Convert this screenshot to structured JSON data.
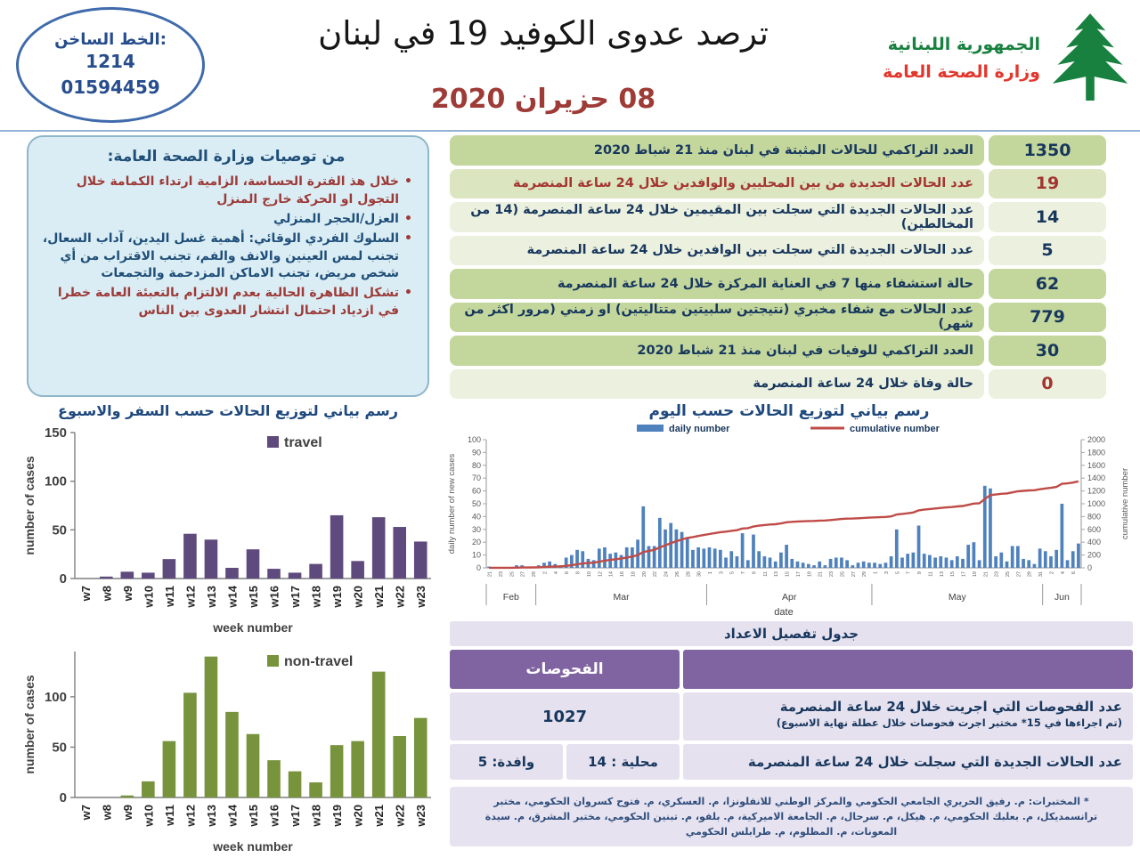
{
  "page": {
    "hotline": {
      "title": "الخط الساخن:",
      "line1": "1214",
      "line2": "01594459"
    },
    "title": "ترصد عدوى الكوفيد 19 في لبنان",
    "date": "08 حزيران 2020",
    "ministry": {
      "name_green": "الجمهورية اللبنانية",
      "name_red": "وزارة الصحة العامة"
    }
  },
  "recommendations": {
    "title": "من توصيات وزارة الصحة العامة:",
    "items": [
      {
        "color": "red",
        "text": "خلال هذ الفترة الحساسة، الزامية ارتداء الكمامة خلال التجول او الحركة خارج المنزل"
      },
      {
        "color": "blue",
        "text": "العزل/الحجر المنزلي"
      },
      {
        "color": "blue",
        "text": "السلوك الفردي الوقائي: أهمية غسل اليدين، آداب السعال، تجنب لمس العينين والانف والفم، تجنب الاقتراب من أي شخص مريض، تجنب الاماكن المزدحمة والتجمعات"
      },
      {
        "color": "red",
        "text": "تشكل الظاهرة الحالية بعدم الالتزام بالتعبئة العامة خطرا في ازدياد احتمال انتشار العدوى بين الناس"
      }
    ]
  },
  "stats_table": {
    "rows": [
      {
        "label": "العدد التراكمي للحالات المثبتة في لبنان منذ 21 شباط 2020",
        "value": "1350",
        "shade": "dark",
        "label_color": "navy",
        "value_color": "navy"
      },
      {
        "label": "عدد الحالات الجديدة من بين المحليين والوافدين خلال 24 ساعة المنصرمة",
        "value": "19",
        "shade": "mid",
        "label_color": "red",
        "value_color": "red"
      },
      {
        "label": "عدد الحالات الجديدة التي سجلت بين المقيمين خلال 24 ساعة المنصرمة (14 من المخالطين)",
        "value": "14",
        "shade": "pale",
        "label_color": "navy",
        "value_color": "navy"
      },
      {
        "label": "عدد الحالات الجديدة التي سجلت بين الوافدين خلال 24 ساعة المنصرمة",
        "value": "5",
        "shade": "pale",
        "label_color": "navy",
        "value_color": "navy"
      },
      {
        "label": "حالة استشفاء منها 7 في العناية المركزة خلال 24 ساعة المنصرمة",
        "value": "62",
        "shade": "dark",
        "label_color": "navy",
        "value_color": "navy"
      },
      {
        "label": "عدد الحالات مع شفاء مخبري (نتيجتين سلبيتين متتاليتين) او زمني (مرور اكثر من شهر)",
        "value": "779",
        "shade": "dark",
        "label_color": "navy",
        "value_color": "navy"
      },
      {
        "label": "العدد التراكمي للوفيات في لبنان منذ 21 شباط 2020",
        "value": "30",
        "shade": "dark",
        "label_color": "navy",
        "value_color": "navy"
      },
      {
        "label": "حالة وفاة خلال 24 ساعة المنصرمة",
        "value": "0",
        "shade": "pale",
        "label_color": "navy",
        "value_color": "red"
      }
    ]
  },
  "charts_section": {
    "weekly_title": "رسم بياني لتوزيع الحالات حسب السفر والاسبوع",
    "daily_title": "رسم بياني لتوزيع الحالات حسب اليوم"
  },
  "detail_table": {
    "title": "جدول تفصيل الاعداد",
    "header": "الفحوصات",
    "row1_label": "عدد الفحوصات التي اجريت خلال 24 ساعة المنصرمة",
    "row1_sub": "(تم اجراءها في 15* مختبر اجرت فحوصات خلال عطلة نهاية الاسبوع)",
    "row1_value": "1027",
    "row2_label": "عدد الحالات الجديدة التي سجلت خلال 24 ساعة المنصرمة",
    "row2_local": "محلية : 14",
    "row2_arrival": "وافدة: 5"
  },
  "footnote": "* المختبرات: م. رفيق الحريري الجامعي الحكومي والمركز الوطني للانفلونزا، م. العسكري، م. فتوح كسروان الحكومي، مختبر ترانسمديكل، م. بعلبك الحكومي، م. هيكل، م. سرحال، م. الجامعة الاميركية، م. بلفو، م. تبنين الحكومي، مختبر المشرق، م. سيدة المعونات، م. المظلوم، م. طرابلس الحكومي",
  "colors": {
    "navy": "#1f497d",
    "brick_red": "#9c3a38",
    "row_green_dark": "#c3d69b",
    "row_green_mid": "#dbe5c0",
    "row_green_pale": "#ecf0df",
    "panel_blue": "#daedf4",
    "purple_header": "#8064a2",
    "lavender": "#e6e1ef",
    "bar_blue": "#4f81bd",
    "line_red": "#bf4b47",
    "bar_purple": "#5e4a7c",
    "bar_green": "#77933c",
    "logo_green": "#18813f",
    "logo_red": "#e3362c"
  },
  "chart_data": [
    {
      "id": "weekly-travel",
      "type": "bar",
      "title": "رسم بياني لتوزيع الحالات حسب السفر والاسبوع",
      "legend": "travel",
      "categories": [
        "w7",
        "w8",
        "w9",
        "w10",
        "w11",
        "w12",
        "w13",
        "w14",
        "w15",
        "w16",
        "w17",
        "w18",
        "w19",
        "w20",
        "w21",
        "w22",
        "w23"
      ],
      "values": [
        0,
        2,
        7,
        6,
        20,
        46,
        40,
        11,
        30,
        10,
        6,
        15,
        65,
        18,
        63,
        53,
        38
      ],
      "xlabel": "week number",
      "ylabel": "number of cases",
      "ylim": [
        0,
        150
      ],
      "yticks": [
        0,
        50,
        100,
        150
      ],
      "color": "#5e4a7c"
    },
    {
      "id": "weekly-nontravel",
      "type": "bar",
      "legend": "non-travel",
      "categories": [
        "w7",
        "w8",
        "w9",
        "w10",
        "w11",
        "w12",
        "w13",
        "w14",
        "w15",
        "w16",
        "w17",
        "w18",
        "w19",
        "w20",
        "w21",
        "w22",
        "w23"
      ],
      "values": [
        0,
        0,
        2,
        16,
        56,
        104,
        140,
        85,
        63,
        37,
        26,
        15,
        52,
        56,
        125,
        61,
        79
      ],
      "xlabel": "week number",
      "ylabel": "number of cases",
      "ylim": [
        0,
        145
      ],
      "yticks": [
        0,
        50,
        100
      ],
      "color": "#77933c"
    },
    {
      "id": "daily",
      "type": "bar+line",
      "title": "رسم بياني لتوزيع الحالات حسب اليوم",
      "legend": [
        "daily number",
        "cumulative number"
      ],
      "xlabel": "date",
      "ylabel_left": "daily number of new cases",
      "ylabel_right": "cumulative number",
      "ylim_left": [
        0,
        100
      ],
      "ytick_step_left": 10,
      "ylim_right": [
        0,
        2000
      ],
      "ytick_step_right": 200,
      "bar_color": "#4f81bd",
      "line_color": "#bf4b47",
      "cumulative_total": 1350,
      "months": [
        {
          "name": "Feb",
          "start_day": 21,
          "values": [
            1,
            0,
            0,
            0,
            0,
            2,
            2,
            1,
            1
          ]
        },
        {
          "name": "Mar",
          "start_day": 1,
          "values": [
            2,
            4,
            5,
            3,
            2,
            8,
            10,
            14,
            13,
            7,
            6,
            15,
            16,
            11,
            12,
            10,
            16,
            16,
            22,
            48,
            17,
            17,
            39,
            30,
            35,
            30,
            28,
            24,
            14,
            16,
            15
          ]
        },
        {
          "name": "Apr",
          "start_day": 1,
          "values": [
            16,
            15,
            14,
            8,
            13,
            9,
            27,
            6,
            26,
            13,
            9,
            8,
            5,
            12,
            18,
            7,
            5,
            4,
            3,
            2,
            5,
            2,
            7,
            8,
            8,
            6,
            2,
            4,
            5,
            4
          ]
        },
        {
          "name": "May",
          "start_day": 1,
          "values": [
            4,
            3,
            4,
            9,
            30,
            8,
            11,
            12,
            33,
            11,
            10,
            8,
            9,
            8,
            6,
            9,
            7,
            18,
            20,
            6,
            64,
            62,
            9,
            12,
            5,
            17,
            17,
            7,
            6,
            3,
            15
          ]
        },
        {
          "name": "Jun",
          "start_day": 1,
          "values": [
            13,
            9,
            14,
            50,
            6,
            13,
            19
          ]
        }
      ]
    }
  ]
}
